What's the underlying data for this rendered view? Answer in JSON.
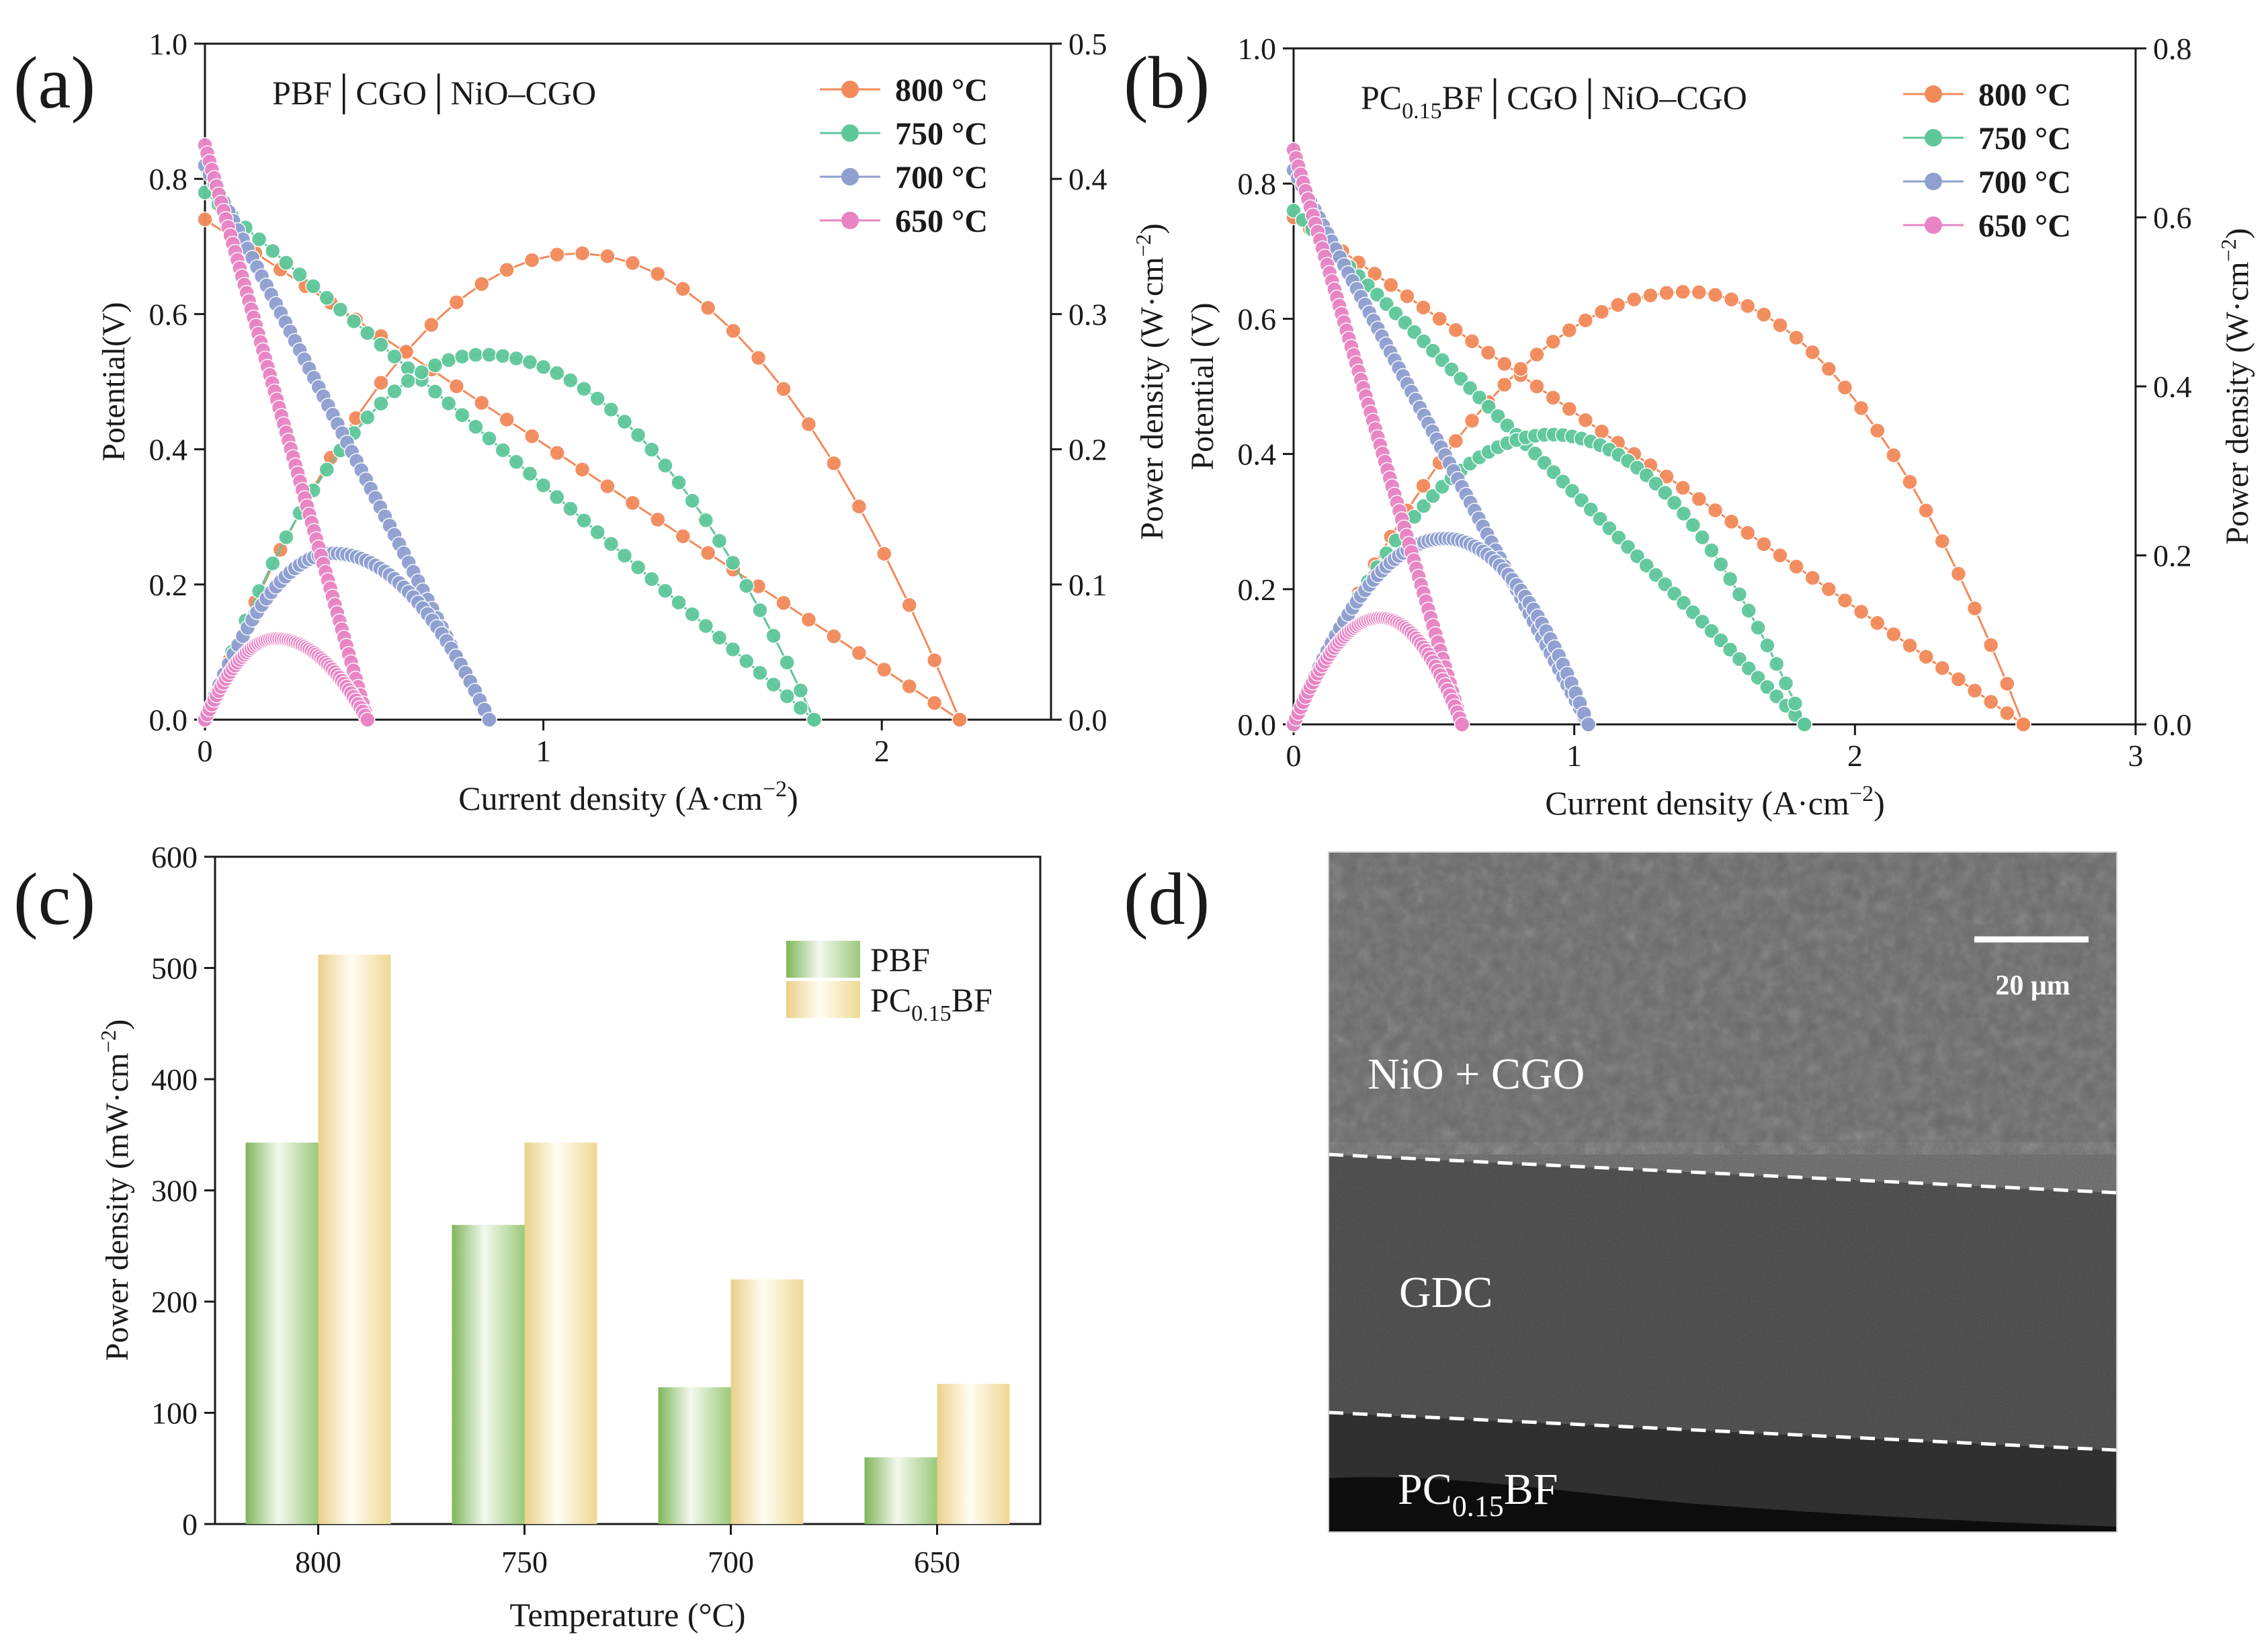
{
  "panels": {
    "a": {
      "letter": "(a)"
    },
    "b": {
      "letter": "(b)"
    },
    "c": {
      "letter": "(c)"
    },
    "d": {
      "letter": "(d)"
    }
  },
  "micrograph": {
    "scale_bar": "20 μm",
    "layers": [
      {
        "label": "NiO + CGO",
        "tone": "#6a6a6a"
      },
      {
        "label": "GDC",
        "tone": "#4a4a4a"
      },
      {
        "label": "PC",
        "sub": "0.15",
        "post": "BF",
        "tone": "#2b2b2b"
      }
    ]
  },
  "colors": {
    "800": "#f28a5a",
    "750": "#5ec79a",
    "700": "#8f9fd0",
    "650": "#e884c4",
    "PBF": "#9cc97a",
    "PC0.15BF": "#f1dc9a"
  },
  "chart_data": [
    {
      "panel": "a",
      "type": "line",
      "cell_label": "PBF│CGO│NiO–CGO",
      "xlabel": "Current density (A·cm",
      "xlabel_sup": "−2",
      "xlabel_end": ")",
      "ylabel": "Potential(V)",
      "y2label": "Power density (W·cm",
      "y2label_sup": "−2",
      "y2label_end": ")",
      "xlim": [
        0,
        2.5
      ],
      "ylim": [
        0,
        1.0
      ],
      "y2lim": [
        0,
        0.5
      ],
      "xticks": [
        "0",
        "1",
        "2"
      ],
      "xtick_values": [
        0,
        1,
        2
      ],
      "yticks": [
        "0.0",
        "0.2",
        "0.4",
        "0.6",
        "0.8",
        "1.0"
      ],
      "y2ticks": [
        "0.0",
        "0.1",
        "0.2",
        "0.3",
        "0.4",
        "0.5"
      ],
      "series": [
        {
          "name": "800 °C",
          "color": "#f28a5a",
          "ocv": 0.74,
          "jmax": 2.23,
          "pmax": 0.345,
          "jpeak": 1.1,
          "n": 30
        },
        {
          "name": "750 °C",
          "color": "#5ec79a",
          "ocv": 0.78,
          "jmax": 1.8,
          "pmax": 0.27,
          "jpeak": 0.82,
          "n": 45
        },
        {
          "name": "700 °C",
          "color": "#8f9fd0",
          "ocv": 0.82,
          "jmax": 0.84,
          "pmax": 0.123,
          "jpeak": 0.38,
          "n": 60
        },
        {
          "name": "650 °C",
          "color": "#e884c4",
          "ocv": 0.85,
          "jmax": 0.48,
          "pmax": 0.06,
          "jpeak": 0.21,
          "n": 70
        }
      ]
    },
    {
      "panel": "b",
      "type": "line",
      "cell_label": "PC",
      "cell_label_sub": "0.15",
      "cell_label_post": "BF│CGO│NiO–CGO",
      "xlabel": "Current density (A·cm",
      "xlabel_sup": "−2",
      "xlabel_end": ")",
      "ylabel": "Potential (V)",
      "y2label": "Power density (W·cm",
      "y2label_sup": "−2",
      "y2label_end": ")",
      "xlim": [
        0,
        3
      ],
      "ylim": [
        0,
        1.0
      ],
      "y2lim": [
        0,
        0.8
      ],
      "xticks": [
        "0",
        "1",
        "2",
        "3"
      ],
      "xtick_values": [
        0,
        1,
        2,
        3
      ],
      "yticks": [
        "0.0",
        "0.2",
        "0.4",
        "0.6",
        "0.8",
        "1.0"
      ],
      "y2ticks": [
        "0.0",
        "0.2",
        "0.4",
        "0.6",
        "0.8"
      ],
      "series": [
        {
          "name": "800 °C",
          "color": "#f28a5a",
          "ocv": 0.75,
          "jmax": 2.6,
          "pmax": 0.512,
          "jpeak": 1.4,
          "n": 45
        },
        {
          "name": "750 °C",
          "color": "#5ec79a",
          "ocv": 0.76,
          "jmax": 1.82,
          "pmax": 0.343,
          "jpeak": 0.92,
          "n": 55
        },
        {
          "name": "700 °C",
          "color": "#8f9fd0",
          "ocv": 0.82,
          "jmax": 1.05,
          "pmax": 0.22,
          "jpeak": 0.54,
          "n": 70
        },
        {
          "name": "650 °C",
          "color": "#e884c4",
          "ocv": 0.85,
          "jmax": 0.6,
          "pmax": 0.126,
          "jpeak": 0.31,
          "n": 70
        }
      ]
    },
    {
      "panel": "c",
      "type": "bar",
      "categories": [
        "800",
        "750",
        "700",
        "650"
      ],
      "xlabel": "Temperature (°C)",
      "ylabel": "Power density (mW·cm",
      "ylabel_sup": "−2",
      "ylabel_end": ")",
      "ylim": [
        0,
        600
      ],
      "yticks": [
        "0",
        "100",
        "200",
        "300",
        "400",
        "500",
        "600"
      ],
      "series": [
        {
          "name": "PBF",
          "values": [
            343,
            269,
            123,
            60
          ],
          "color": "#9cc97a"
        },
        {
          "name": "PC",
          "name_sub": "0.15",
          "name_post": "BF",
          "values": [
            512,
            343,
            220,
            126
          ],
          "color": "#f1dc9a"
        }
      ]
    }
  ]
}
